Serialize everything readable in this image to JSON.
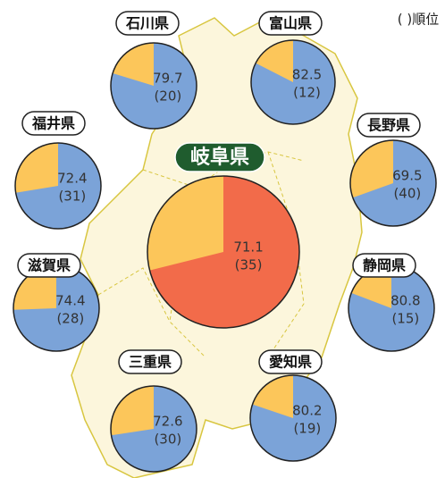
{
  "legend": "( )順位",
  "prefectures": [
    {
      "name": "石川県",
      "value": 79.7,
      "rank": "(20)",
      "color": "#7ba3d8"
    },
    {
      "name": "富山県",
      "value": 82.5,
      "rank": "(12)",
      "color": "#7ba3d8"
    },
    {
      "name": "福井県",
      "value": 72.4,
      "rank": "(31)",
      "color": "#7ba3d8"
    },
    {
      "name": "長野県",
      "value": 69.5,
      "rank": "(40)",
      "color": "#7ba3d8"
    },
    {
      "name": "岐阜県",
      "value": 71.1,
      "rank": "(35)",
      "color": "#f26b4a"
    },
    {
      "name": "滋賀県",
      "value": 74.4,
      "rank": "(28)",
      "color": "#7ba3d8"
    },
    {
      "name": "静岡県",
      "value": 80.8,
      "rank": "(15)",
      "color": "#7ba3d8"
    },
    {
      "name": "三重県",
      "value": 72.6,
      "rank": "(30)",
      "color": "#7ba3d8"
    },
    {
      "name": "愛知県",
      "value": 80.2,
      "rank": "(19)",
      "color": "#7ba3d8"
    }
  ],
  "rest_color": "#fcc65a"
}
